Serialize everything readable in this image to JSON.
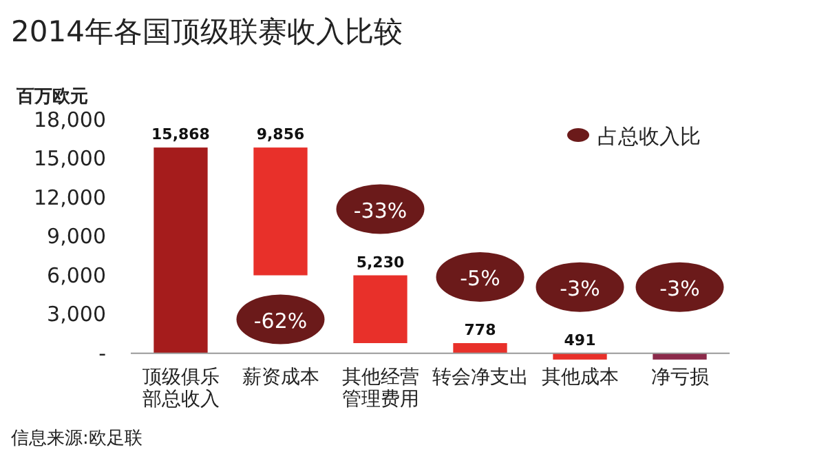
{
  "chart_data": {
    "type": "bar",
    "title": "2014年各国顶级联赛收入比较",
    "ylabel": "百万欧元",
    "categories": [
      "顶级俱乐部总收入",
      "薪资成本",
      "其他经营管理费用",
      "转会净支出",
      "其他成本",
      "净亏损"
    ],
    "ylim": [
      -600,
      18000
    ],
    "yticks": [
      {
        "value": 0,
        "label": "-"
      },
      {
        "value": 3000,
        "label": "3,000"
      },
      {
        "value": 6000,
        "label": "6,000"
      },
      {
        "value": 9000,
        "label": "9,000"
      },
      {
        "value": 12000,
        "label": "12,000"
      },
      {
        "value": 15000,
        "label": "15,000"
      },
      {
        "value": 18000,
        "label": "18,000"
      }
    ],
    "series": [
      {
        "values": [
          15868,
          9856,
          5230,
          778,
          491,
          -487
        ],
        "base": [
          0,
          6012,
          782,
          4,
          -487,
          0
        ],
        "colors": [
          "#a51c1c",
          "#e8302a",
          "#e8302a",
          "#e8302a",
          "#e8302a",
          "#8b2a4a"
        ],
        "value_labels": [
          "15,868",
          "9,856",
          "5,230",
          "778",
          "491",
          null
        ]
      }
    ],
    "grid": false,
    "annotations": [
      "占总收入比",
      "-62%",
      "-33%",
      "-5%",
      "-3%",
      "-3%",
      "信息来源:欧足联"
    ]
  }
}
